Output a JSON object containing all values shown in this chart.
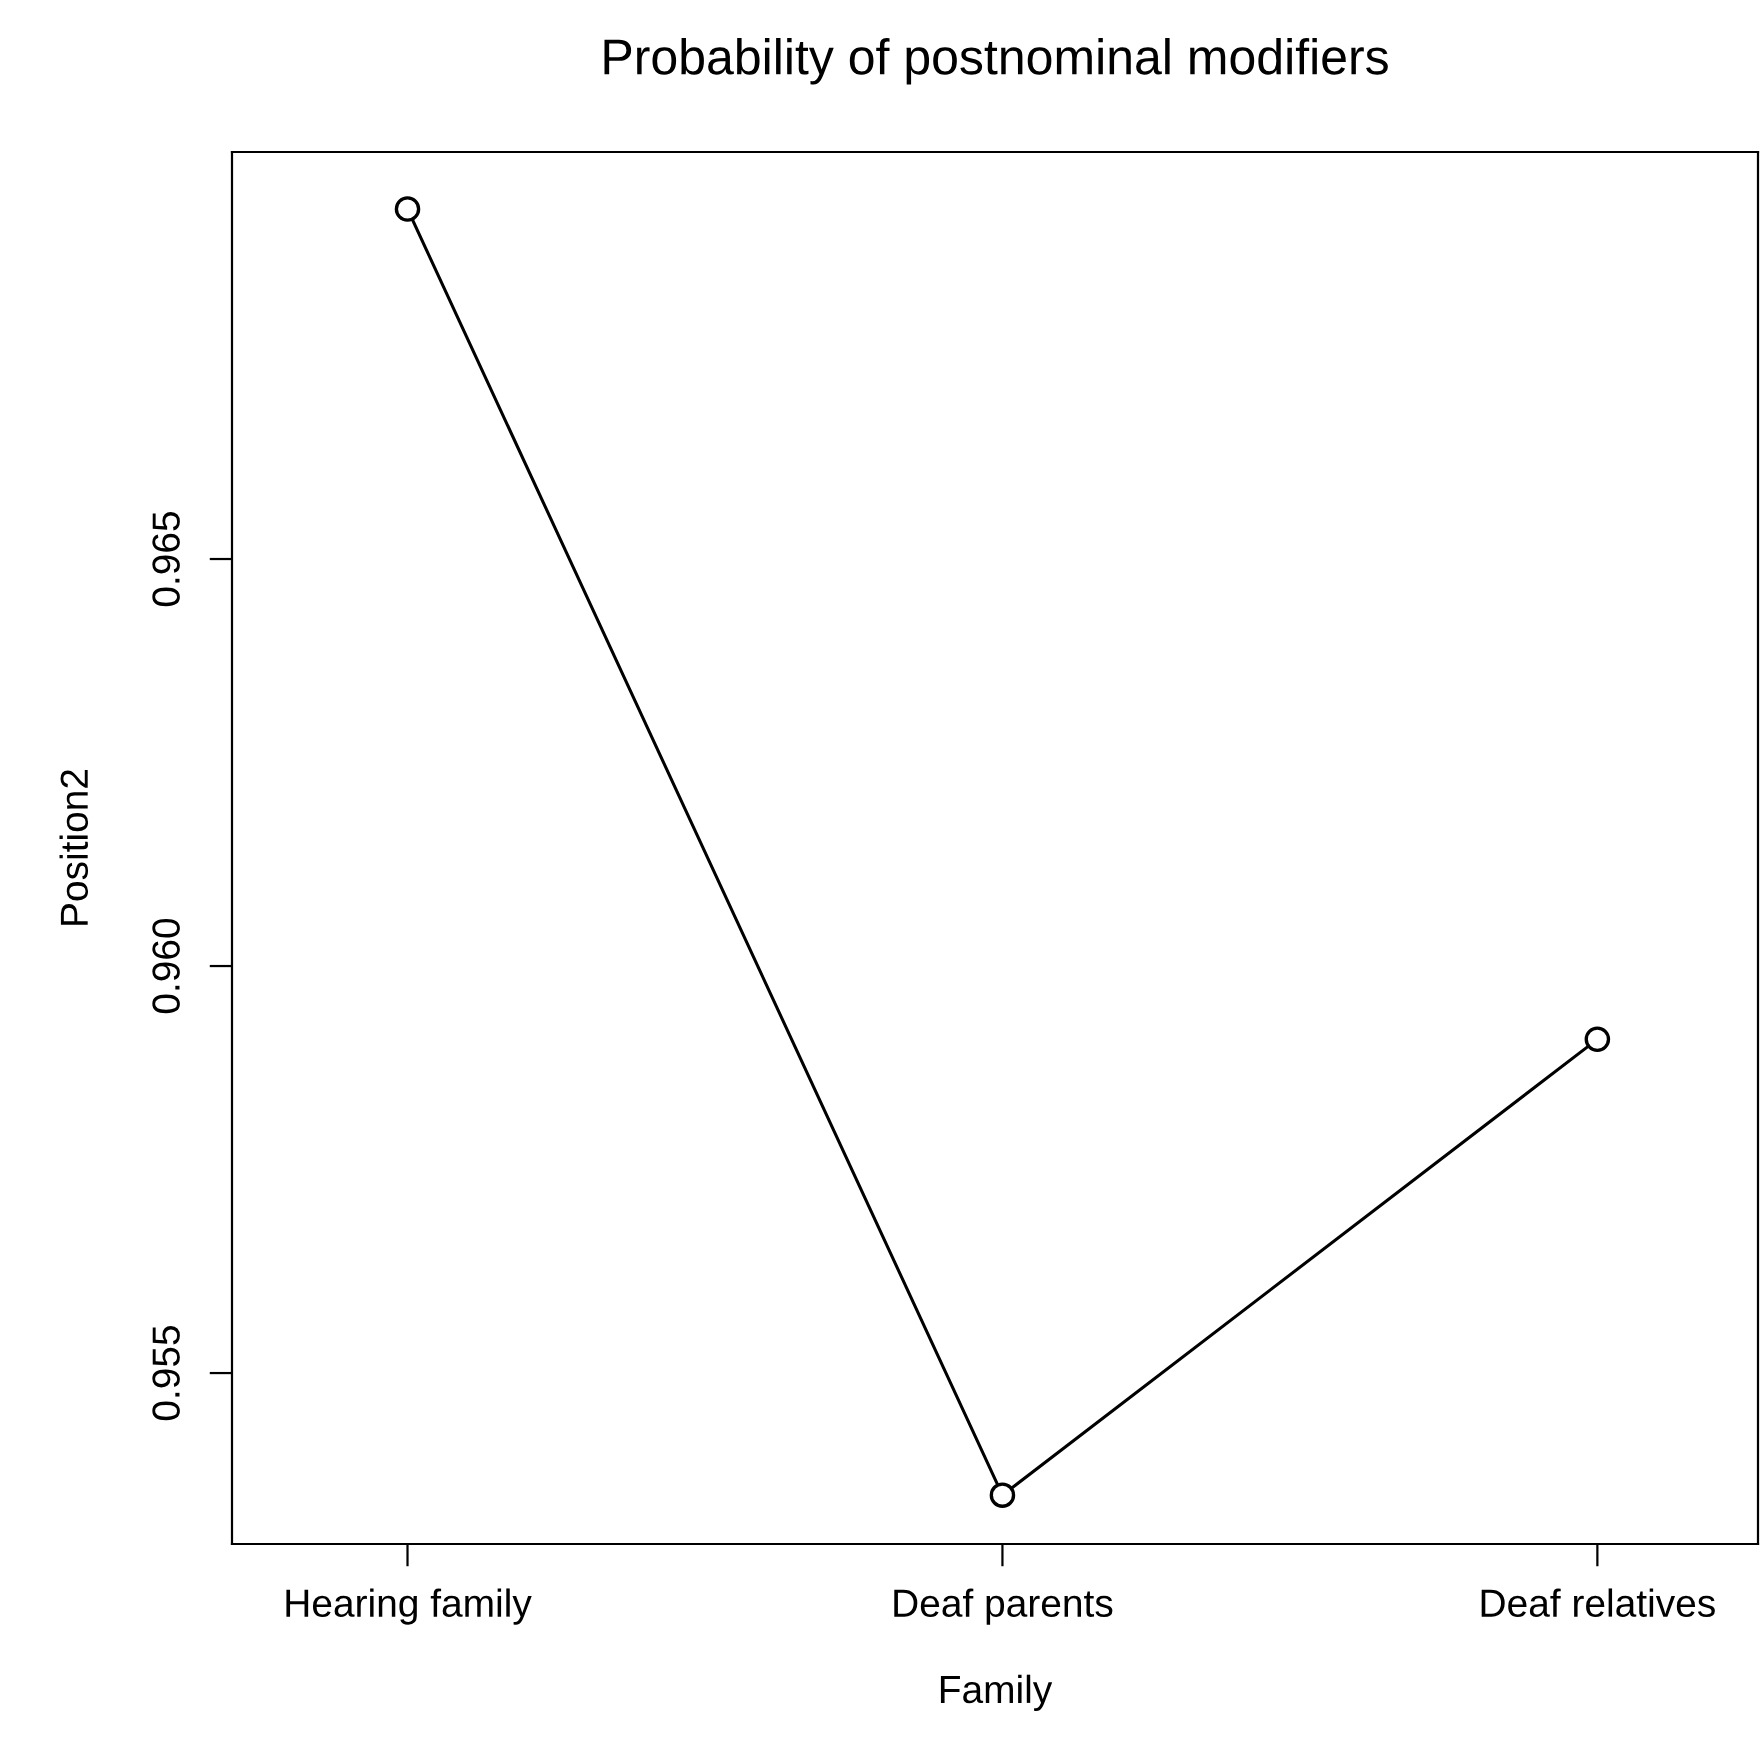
{
  "chart_data": {
    "type": "line",
    "title": "Probability of postnominal modifiers",
    "xlabel": "Family",
    "ylabel": "Position2",
    "categories": [
      "Hearing family",
      "Deaf parents",
      "Deaf relatives"
    ],
    "series": [
      {
        "color": "#000000",
        "values": [
          0.9693,
          0.9535,
          0.9591
        ]
      }
    ],
    "ylim": [
      0.9529,
      0.97
    ],
    "yticks": [
      0.955,
      {
        "value": 0.96,
        "label": "0.960"
      },
      0.965
    ],
    "marker": "circle",
    "line_style": "solid",
    "grid": false,
    "legend": false
  }
}
